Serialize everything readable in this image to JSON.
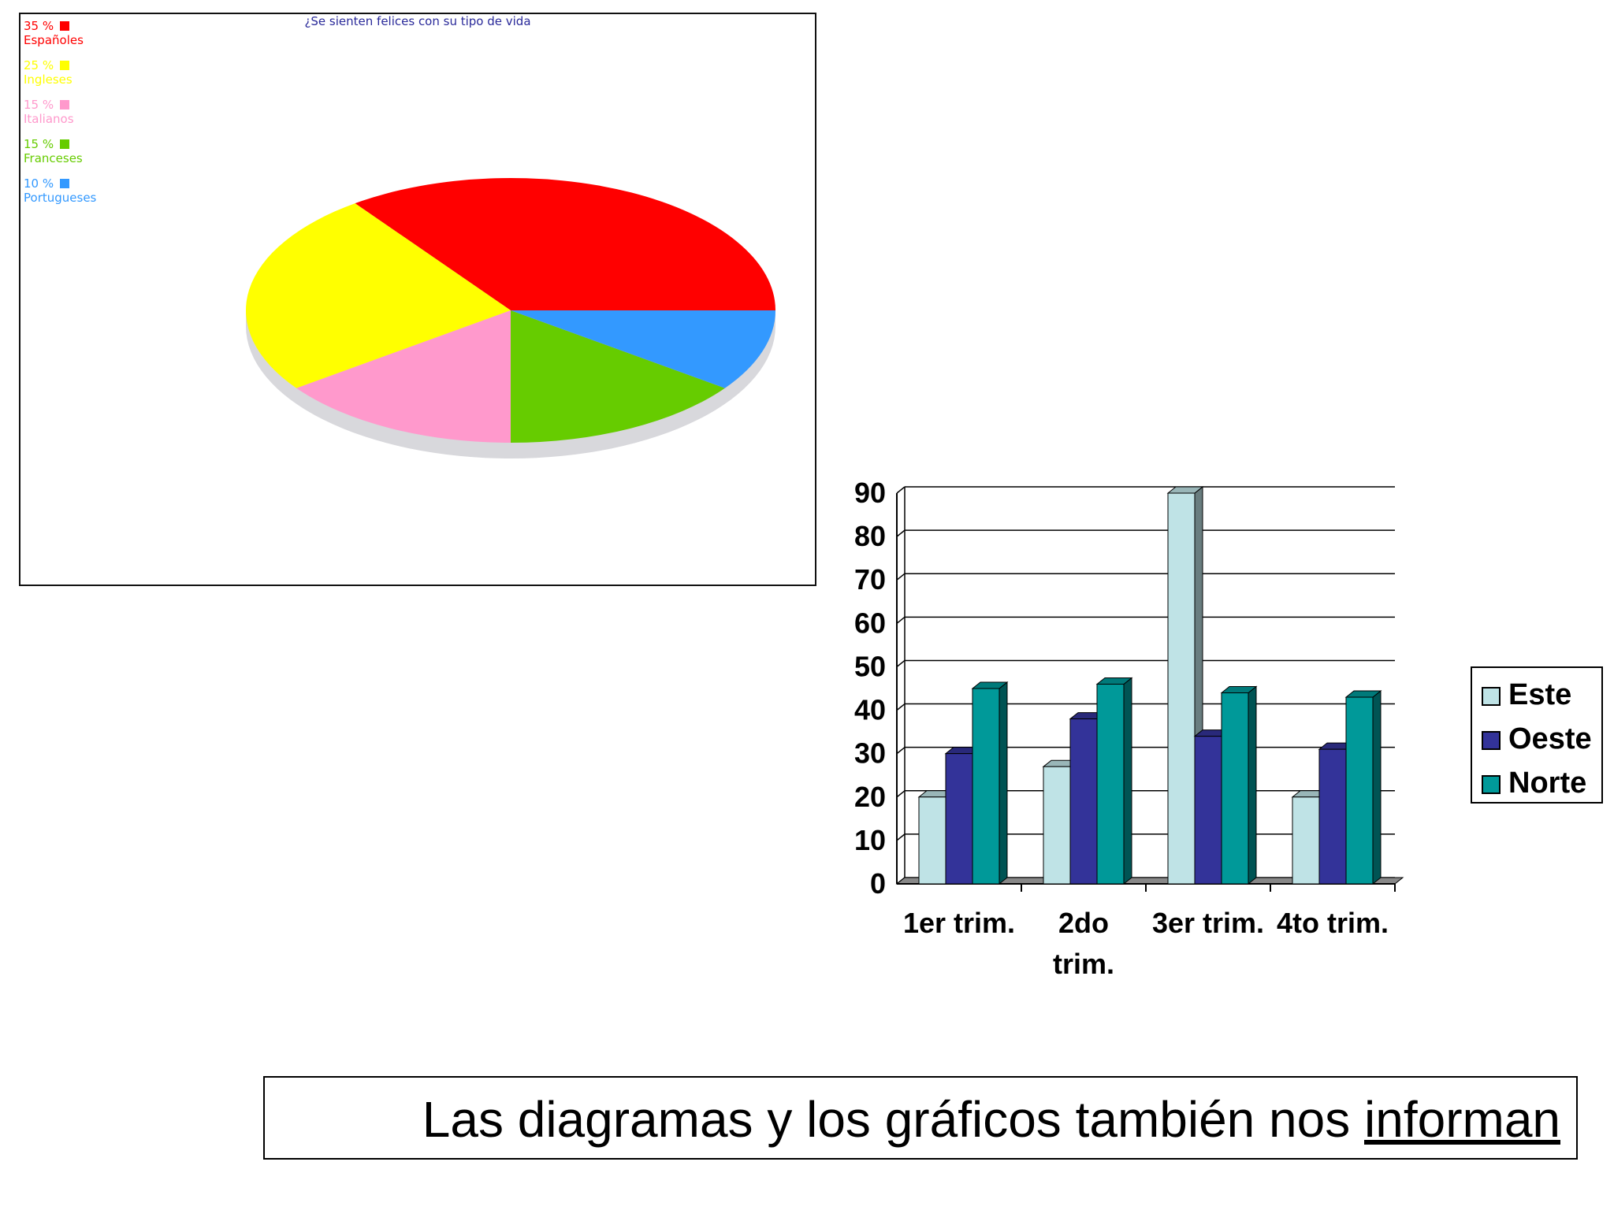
{
  "chart_data": [
    {
      "type": "pie",
      "title": "¿Se sienten felices con su tipo de vida",
      "slices": [
        {
          "label": "Españoles",
          "percent_label": "35 %",
          "value": 35,
          "color": "#ff0000"
        },
        {
          "label": "Ingleses",
          "percent_label": "25 %",
          "value": 25,
          "color": "#ffff00"
        },
        {
          "label": "Italianos",
          "percent_label": "15 %",
          "value": 15,
          "color": "#ff99cc"
        },
        {
          "label": "Franceses",
          "percent_label": "15 %",
          "value": 15,
          "color": "#66cc00"
        },
        {
          "label": "Portugueses",
          "percent_label": "10 %",
          "value": 10,
          "color": "#3399ff"
        }
      ],
      "legend_placement": "top-left"
    },
    {
      "type": "bar",
      "categories": [
        "1er trim.",
        "2do trim.",
        "3er trim.",
        "4to trim."
      ],
      "series": [
        {
          "name": "Este",
          "values": [
            20,
            27,
            90,
            20
          ],
          "color": "#bfe3e6"
        },
        {
          "name": "Oeste",
          "values": [
            30,
            38,
            34,
            31
          ],
          "color": "#333399"
        },
        {
          "name": "Norte",
          "values": [
            45,
            46,
            44,
            43
          ],
          "color": "#009999"
        }
      ],
      "yticks": [
        "0",
        "10",
        "20",
        "30",
        "40",
        "50",
        "60",
        "70",
        "80",
        "90"
      ],
      "ylim": [
        0,
        90
      ],
      "grid": true,
      "legend_placement": "right"
    }
  ],
  "caption": {
    "text_plain": "Las diagramas y los gráficos también nos ",
    "text_underlined": "informan"
  }
}
